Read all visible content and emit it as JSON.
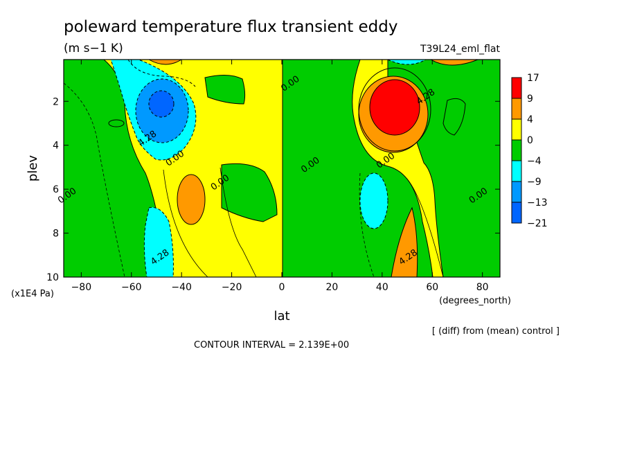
{
  "header": {
    "title": "poleward temperature flux transient eddy",
    "units": "(m s−1 K)",
    "run_label": "T39L24_eml_flat"
  },
  "footer": {
    "comparison_note": "[ (diff) from (mean) control ]",
    "contour_interval": "CONTOUR INTERVAL = 2.139E+00"
  },
  "chart_data": {
    "type": "heatmap",
    "title": "poleward temperature flux transient eddy",
    "subtitle": "(m s−1 K)",
    "xlabel": "lat",
    "xunits": "(degrees_north)",
    "ylabel": "plev",
    "yunits": "(x1E4 Pa)",
    "xlim": [
      -87,
      87
    ],
    "ylim": [
      10,
      0.1
    ],
    "x_ticks": [
      -80,
      -60,
      -40,
      -20,
      0,
      20,
      40,
      60,
      80
    ],
    "y_ticks": [
      2,
      4,
      6,
      8,
      10
    ],
    "legend": {
      "placement": "right",
      "levels": [
        "17",
        "9",
        "4",
        "0",
        "−4",
        "−9",
        "−13",
        "−21"
      ],
      "colors": [
        "#ff0000",
        "#ff9900",
        "#ffff00",
        "#00cc00",
        "#00ffff",
        "#0099ff",
        "#0066ff"
      ]
    },
    "contour_labels": [
      {
        "text": "0.00",
        "lat": -85,
        "plev": 6.4
      },
      {
        "text": "4.28",
        "lat": -53,
        "plev": 3.8
      },
      {
        "text": "0.00",
        "lat": -42,
        "plev": 4.7
      },
      {
        "text": "4.28",
        "lat": -48,
        "plev": 9.2
      },
      {
        "text": "0.00",
        "lat": -24,
        "plev": 5.8
      },
      {
        "text": "0.00",
        "lat": 4,
        "plev": 1.3
      },
      {
        "text": "0.00",
        "lat": 12,
        "plev": 5.0
      },
      {
        "text": "0.00",
        "lat": 42,
        "plev": 4.8
      },
      {
        "text": "4.28",
        "lat": 58,
        "plev": 1.9
      },
      {
        "text": "4.28",
        "lat": 51,
        "plev": 9.2
      },
      {
        "text": "0.00",
        "lat": 79,
        "plev": 6.4
      }
    ],
    "features": [
      {
        "sign": "negative",
        "peak": "−21",
        "lat": -49,
        "plev": 2.2
      },
      {
        "sign": "positive",
        "peak": "17",
        "lat": 48,
        "plev": 2.3
      },
      {
        "sign": "positive",
        "peak": "4",
        "lat": -36,
        "plev": 6.7
      },
      {
        "sign": "negative",
        "peak": "−9",
        "lat": 36,
        "plev": 6.6
      },
      {
        "sign": "negative",
        "peak": "−9",
        "lat": -49,
        "plev": 9.0
      },
      {
        "sign": "positive",
        "peak": "9",
        "lat": 50,
        "plev": 9.4
      }
    ]
  }
}
